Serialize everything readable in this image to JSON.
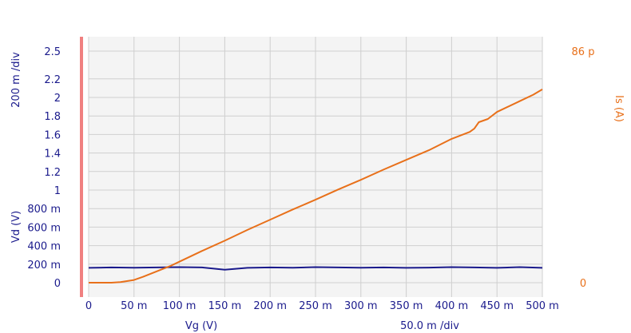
{
  "colors": {
    "plot_bg": "#f4f4f4",
    "grid": "#cfcfcf",
    "vd_line": "#1a1a8c",
    "is_line": "#e8701a",
    "marker": "#f08080",
    "text_blue": "#1a1a8c",
    "text_orange": "#e8701a"
  },
  "chart_data": {
    "type": "line",
    "xlabel": "Vg (V)",
    "x_scale_label": "50.0 m /div",
    "left_scale_label": "200 m /div",
    "ylabel_left": "Vd (V)",
    "ylabel_right": "Is (A)",
    "x_range": [
      0,
      0.5
    ],
    "y_left_range": [
      -0.05,
      2.5
    ],
    "y_right_range": [
      0,
      86
    ],
    "x_ticks": [
      "0",
      "50 m",
      "100 m",
      "150 m",
      "200 m",
      "250 m",
      "300 m",
      "350 m",
      "400 m",
      "450 m",
      "500 m"
    ],
    "x_tick_values": [
      0,
      0.05,
      0.1,
      0.15,
      0.2,
      0.25,
      0.3,
      0.35,
      0.4,
      0.45,
      0.5
    ],
    "y_left_ticks": [
      "2.5",
      "2.2",
      "2",
      "1.8",
      "1.6",
      "1.4",
      "1.2",
      "1",
      "800 m",
      "600 m",
      "400 m",
      "200 m",
      "0"
    ],
    "y_left_tick_values": [
      2.5,
      2.2,
      2.0,
      1.8,
      1.6,
      1.4,
      1.2,
      1.0,
      0.8,
      0.6,
      0.4,
      0.2,
      0
    ],
    "y_right_ticks": [
      "86 p",
      "0"
    ],
    "y_right_tick_values": [
      86,
      0
    ],
    "grid": true,
    "series": [
      {
        "name": "Vd (V)",
        "axis": "left",
        "x": [
          0,
          0.025,
          0.05,
          0.075,
          0.1,
          0.125,
          0.15,
          0.175,
          0.2,
          0.225,
          0.25,
          0.275,
          0.3,
          0.325,
          0.35,
          0.375,
          0.4,
          0.425,
          0.45,
          0.475,
          0.5
        ],
        "y": [
          0.16,
          0.165,
          0.162,
          0.165,
          0.168,
          0.165,
          0.14,
          0.16,
          0.165,
          0.162,
          0.168,
          0.165,
          0.162,
          0.165,
          0.16,
          0.163,
          0.168,
          0.165,
          0.16,
          0.168,
          0.16
        ]
      },
      {
        "name": "Is (A)",
        "axis": "right",
        "x": [
          0,
          0.025,
          0.035,
          0.05,
          0.06,
          0.075,
          0.09,
          0.1,
          0.125,
          0.15,
          0.175,
          0.2,
          0.225,
          0.25,
          0.275,
          0.3,
          0.325,
          0.35,
          0.375,
          0.4,
          0.42,
          0.425,
          0.43,
          0.44,
          0.45,
          0.475,
          0.49,
          0.5
        ],
        "y": [
          0,
          0,
          0.2,
          1.0,
          2.2,
          4.2,
          6.2,
          7.8,
          11.8,
          15.6,
          19.6,
          23.4,
          27.2,
          30.8,
          34.6,
          38.2,
          42.0,
          45.6,
          49.2,
          53.4,
          56.0,
          57.2,
          59.6,
          60.8,
          63.4,
          67.4,
          69.8,
          71.8
        ]
      }
    ]
  }
}
